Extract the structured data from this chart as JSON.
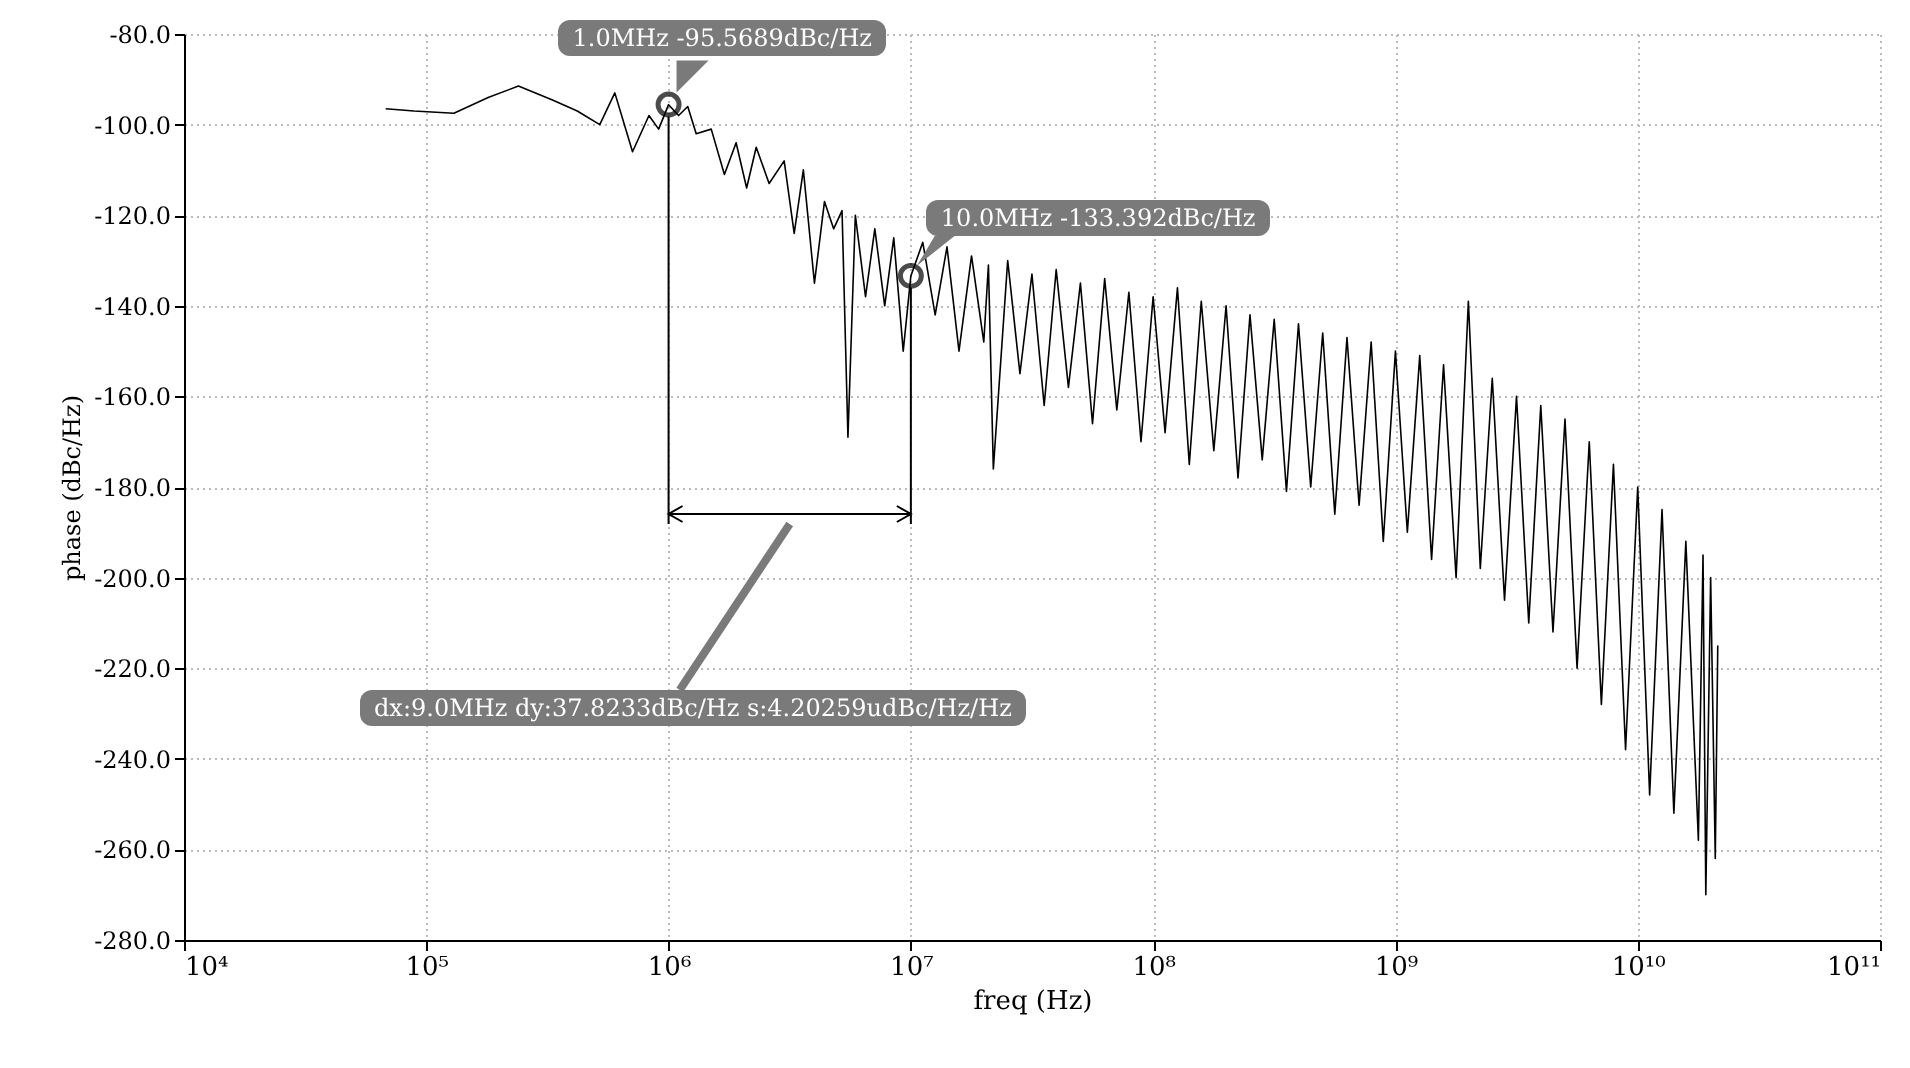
{
  "chart_data": {
    "type": "line",
    "xlabel": "freq (Hz)",
    "ylabel": "phase (dBc/Hz)",
    "log": "x",
    "grid": true,
    "marker": "none",
    "line_style": "solid",
    "xlim": [
      10000,
      100000000000
    ],
    "xticks": [
      {
        "value": 10000,
        "label": "10⁴"
      },
      {
        "value": 100000,
        "label": "10⁵"
      },
      {
        "value": 1000000,
        "label": "10⁶"
      },
      {
        "value": 10000000,
        "label": "10⁷"
      },
      {
        "value": 100000000,
        "label": "10⁸"
      },
      {
        "value": 1000000000,
        "label": "10⁹"
      },
      {
        "value": 10000000000,
        "label": "10¹⁰"
      },
      {
        "value": 100000000000,
        "label": "10¹¹"
      }
    ],
    "ylim": [
      -280,
      -80
    ],
    "yticks": [
      {
        "value": -80,
        "label": "-80.0"
      },
      {
        "value": -100,
        "label": "-100.0"
      },
      {
        "value": -120,
        "label": "-120.0"
      },
      {
        "value": -140,
        "label": "-140.0"
      },
      {
        "value": -160,
        "label": "-160.0"
      },
      {
        "value": -180,
        "label": "-180.0"
      },
      {
        "value": -200,
        "label": "-200.0"
      },
      {
        "value": -220,
        "label": "-220.0"
      },
      {
        "value": -240,
        "label": "-240.0"
      },
      {
        "value": -260,
        "label": "-260.0"
      },
      {
        "value": -280,
        "label": "-280.0"
      }
    ],
    "annotations": [
      {
        "text": "1.0MHz -95.5689dBc/Hz",
        "x": 1000000,
        "y": -95.5689
      },
      {
        "text": "10.0MHz -133.392dBc/Hz",
        "x": 10000000,
        "y": -133.392
      },
      "dx:9.0MHz dy:37.8233dBc/Hz s:4.20259udBc/Hz/Hz"
    ],
    "series": [
      {
        "color": "#000000",
        "x": [
          68000,
          89000,
          130000,
          180000,
          240000,
          330000,
          420000,
          520000,
          600000,
          710000,
          830000,
          910000,
          1000000,
          1100000,
          1200000,
          1300000,
          1500000,
          1700000,
          1900000,
          2100000,
          2300000,
          2600000,
          3000000,
          3300000,
          3600000,
          4000000,
          4400000,
          4800000,
          5200000,
          5500000,
          5900000,
          6500000,
          7100000,
          7800000,
          8500000,
          9300000,
          10000000,
          11200000,
          12600000,
          14100000,
          15800000,
          17800000,
          20000000,
          20900000,
          21900000,
          25100000,
          28200000,
          31600000,
          35500000,
          39800000,
          44700000,
          50100000,
          56200000,
          63100000,
          70800000,
          79400000,
          89100000,
          100000000,
          112000000,
          126000000,
          141000000,
          158000000,
          178000000,
          200000000,
          224000000,
          251000000,
          282000000,
          316000000,
          355000000,
          398000000,
          447000000,
          501000000,
          562000000,
          631000000,
          708000000,
          794000000,
          891000000,
          1000000000,
          1120000000,
          1260000000,
          1410000000,
          1580000000,
          1780000000,
          2000000000,
          2240000000,
          2510000000,
          2820000000,
          3160000000,
          3550000000,
          3980000000,
          4470000000,
          5010000000,
          5620000000,
          6310000000,
          7080000000,
          7940000000,
          8910000000,
          10000000000,
          11200000000,
          12600000000,
          14100000000,
          15800000000,
          17800000000,
          18600000000,
          19100000000,
          20000000000,
          20900000000,
          21400000000
        ],
        "values": [
          -96.5,
          -97,
          -97.5,
          -94,
          -91.5,
          -94.5,
          -97,
          -100,
          -93,
          -106,
          -98,
          -101,
          -95.6,
          -98,
          -96,
          -102,
          -101,
          -111,
          -104,
          -114,
          -105,
          -113,
          -108,
          -124,
          -110,
          -135,
          -117,
          -123,
          -119,
          -169,
          -120,
          -138,
          -123,
          -140,
          -125,
          -150,
          -133.4,
          -126,
          -142,
          -127,
          -150,
          -129,
          -148,
          -131,
          -176,
          -130,
          -155,
          -133,
          -162,
          -132,
          -158,
          -135,
          -166,
          -134,
          -163,
          -137,
          -170,
          -138,
          -168,
          -136,
          -175,
          -139,
          -172,
          -140,
          -178,
          -142,
          -174,
          -143,
          -181,
          -144,
          -180,
          -146,
          -186,
          -147,
          -184,
          -148,
          -192,
          -150,
          -190,
          -151,
          -196,
          -153,
          -200,
          -139,
          -198,
          -156,
          -205,
          -160,
          -210,
          -162,
          -212,
          -165,
          -220,
          -170,
          -228,
          -175,
          -238,
          -180,
          -248,
          -185,
          -252,
          -192,
          -258,
          -195,
          -270,
          -200,
          -262,
          -215
        ]
      }
    ]
  }
}
